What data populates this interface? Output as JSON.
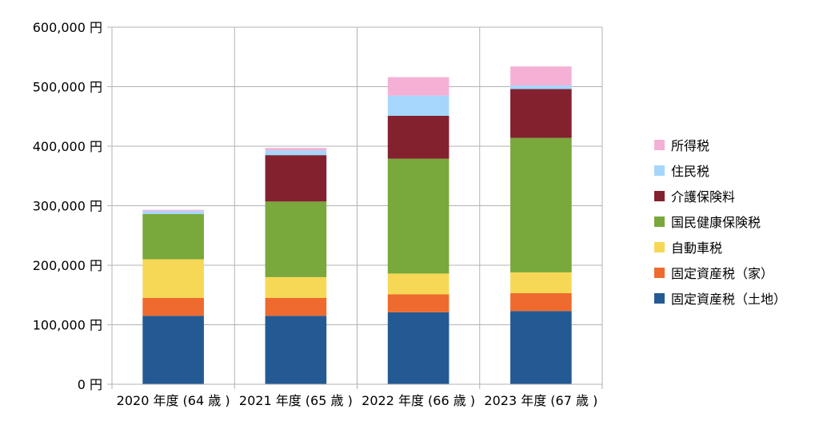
{
  "chart_data": {
    "type": "bar",
    "stacked": true,
    "categories": [
      "2020 年度 (64 歳 )",
      "2021 年度 (65 歳 )",
      "2022 年度 (66 歳 )",
      "2023 年度 (67 歳 )"
    ],
    "y_ticks": [
      "0 円",
      "100,000 円",
      "200,000 円",
      "300,000 円",
      "400,000 円",
      "500,000 円",
      "600,000 円"
    ],
    "ylim": [
      0,
      600000
    ],
    "grid": true,
    "legend_position": "right",
    "series": [
      {
        "name": "固定資産税（土地）",
        "color": "#245a93",
        "values": [
          115000,
          115000,
          121000,
          123000
        ]
      },
      {
        "name": "固定資産税（家）",
        "color": "#ee6a2e",
        "values": [
          30000,
          30000,
          30000,
          30000
        ]
      },
      {
        "name": "自動車税",
        "color": "#f6d856",
        "values": [
          65000,
          35000,
          35000,
          35000
        ]
      },
      {
        "name": "国民健康保険税",
        "color": "#79a83c",
        "values": [
          76000,
          127000,
          193000,
          226000
        ]
      },
      {
        "name": "介護保険料",
        "color": "#83212f",
        "values": [
          0,
          78000,
          72000,
          82000
        ]
      },
      {
        "name": "住民税",
        "color": "#a6d6fc",
        "values": [
          5000,
          8000,
          34000,
          6000
        ]
      },
      {
        "name": "所得税",
        "color": "#f4b1d5",
        "values": [
          2000,
          4000,
          31000,
          32000
        ]
      }
    ]
  }
}
